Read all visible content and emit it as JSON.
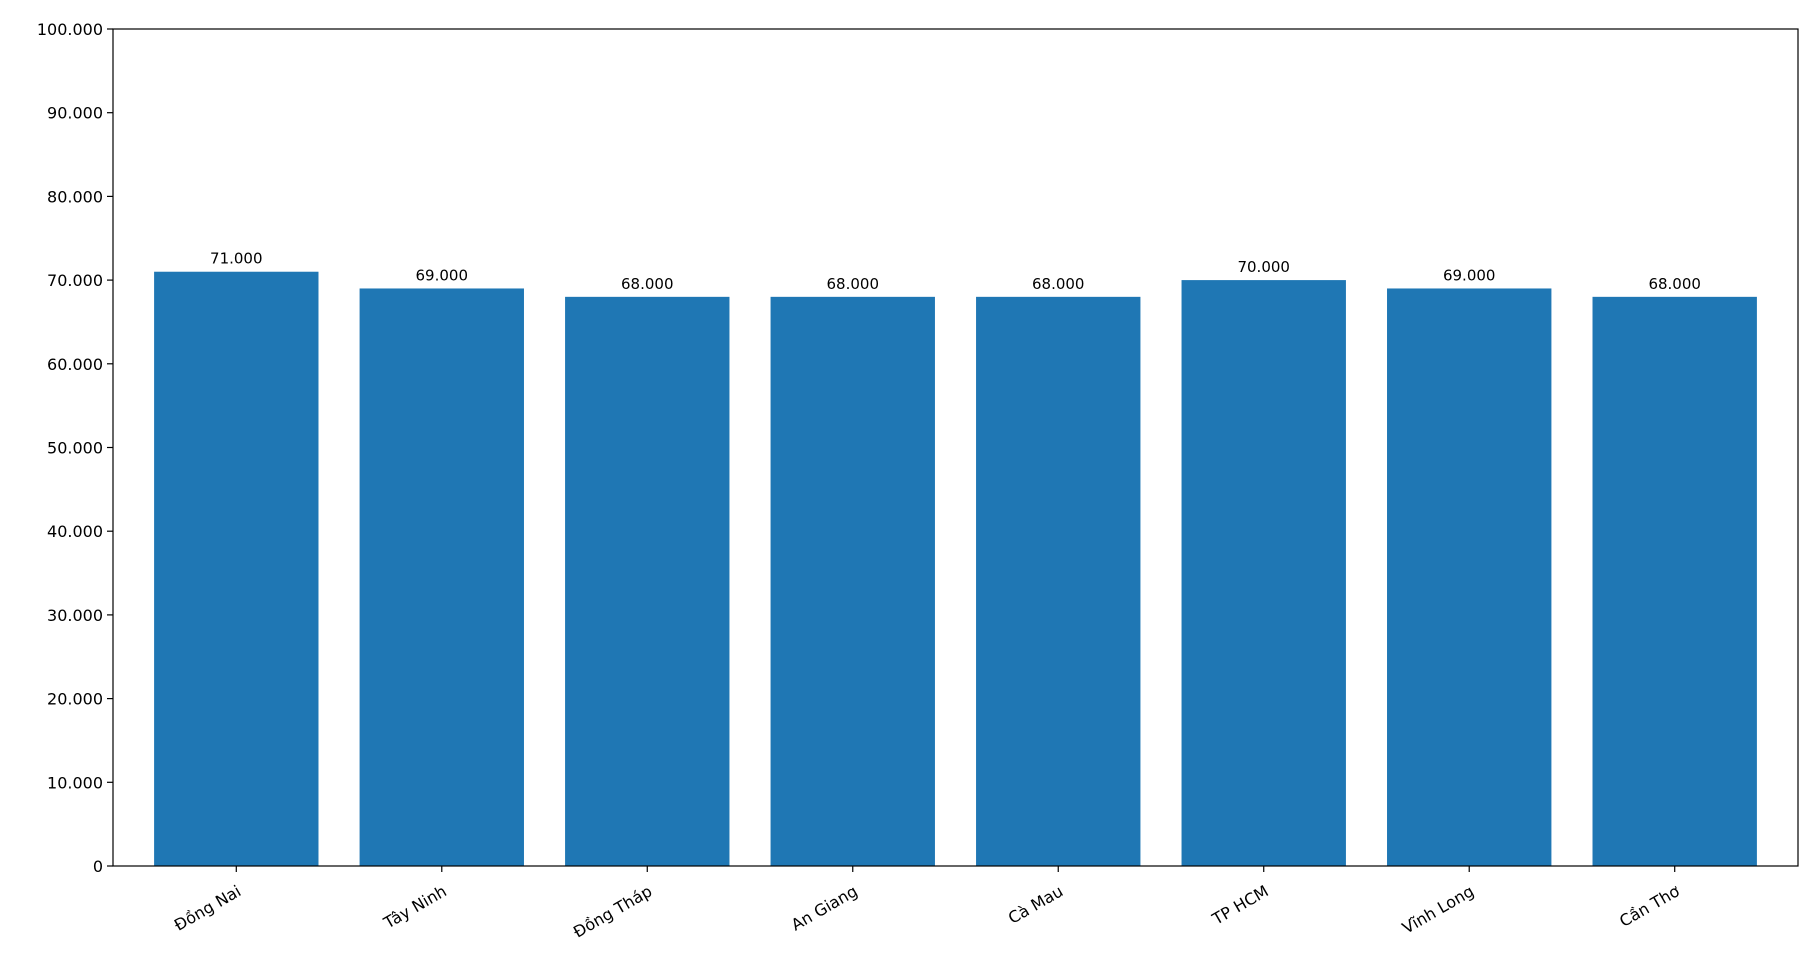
{
  "chart_data": {
    "type": "bar",
    "categories": [
      "Đồng Nai",
      "Tây Ninh",
      "Đồng Tháp",
      "An Giang",
      "Cà Mau",
      "TP HCM",
      "Vĩnh Long",
      "Cần Thơ"
    ],
    "values": [
      71000,
      69000,
      68000,
      68000,
      68000,
      70000,
      69000,
      68000
    ],
    "value_labels": [
      "71.000",
      "69.000",
      "68.000",
      "68.000",
      "68.000",
      "70.000",
      "69.000",
      "68.000"
    ],
    "color": "#1f77b4",
    "ylim": [
      0,
      100000
    ],
    "yticks": [
      0,
      {
        "value": 10000,
        "label": "10.000"
      },
      {
        "value": 20000,
        "label": "20.000"
      },
      {
        "value": 30000,
        "label": "30.000"
      },
      {
        "value": 40000,
        "label": "40.000"
      },
      {
        "value": 50000,
        "label": "50.000"
      },
      {
        "value": 60000,
        "label": "60.000"
      },
      {
        "value": 70000,
        "label": "70.000"
      },
      {
        "value": 80000,
        "label": "80.000"
      },
      {
        "value": 90000,
        "label": "90.000"
      },
      {
        "value": 100000,
        "label": "100.000"
      }
    ],
    "grid": false
  }
}
